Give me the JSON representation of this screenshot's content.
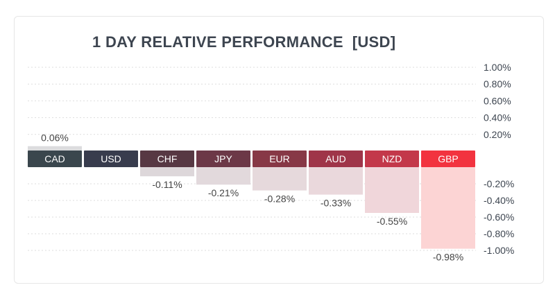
{
  "chart_data": {
    "type": "bar",
    "title": "1 DAY RELATIVE PERFORMANCE  [USD]",
    "categories": [
      "CAD",
      "USD",
      "CHF",
      "JPY",
      "EUR",
      "AUD",
      "NZD",
      "GBP"
    ],
    "values": [
      0.06,
      0.0,
      -0.11,
      -0.21,
      -0.28,
      -0.33,
      -0.55,
      -0.98
    ],
    "value_labels": [
      "0.06%",
      "",
      "-0.11%",
      "-0.21%",
      "-0.28%",
      "-0.33%",
      "-0.55%",
      "-0.98%"
    ],
    "positive_ticks": [
      {
        "value": 1.0,
        "label": "1.00%"
      },
      {
        "value": 0.8,
        "label": "0.80%"
      },
      {
        "value": 0.6,
        "label": "0.60%"
      },
      {
        "value": 0.4,
        "label": "0.40%"
      },
      {
        "value": 0.2,
        "label": "0.20%"
      }
    ],
    "negative_ticks": [
      {
        "value": -0.2,
        "label": "-0.20%"
      },
      {
        "value": -0.4,
        "label": "-0.40%"
      },
      {
        "value": -0.6,
        "label": "-0.60%"
      },
      {
        "value": -0.8,
        "label": "-0.80%"
      },
      {
        "value": -1.0,
        "label": "-1.00%"
      }
    ],
    "ylim": [
      -1.0,
      1.0
    ],
    "grid": true,
    "label_colors": [
      "#3a464d",
      "#383c4d",
      "#573843",
      "#6c3847",
      "#873846",
      "#9f3549",
      "#c3384a",
      "#f2333f"
    ],
    "bar_colors": [
      "#dcdcde",
      "#dcdcde",
      "#ddd7da",
      "#e2d9dc",
      "#e6d9dc",
      "#ead8dc",
      "#f0d6da",
      "#fcd4d4"
    ],
    "label_text_color": "#ffffff",
    "value_text_color": "#444444",
    "tick_text_color": "#3d4550",
    "grid_color": "#dddddd"
  }
}
